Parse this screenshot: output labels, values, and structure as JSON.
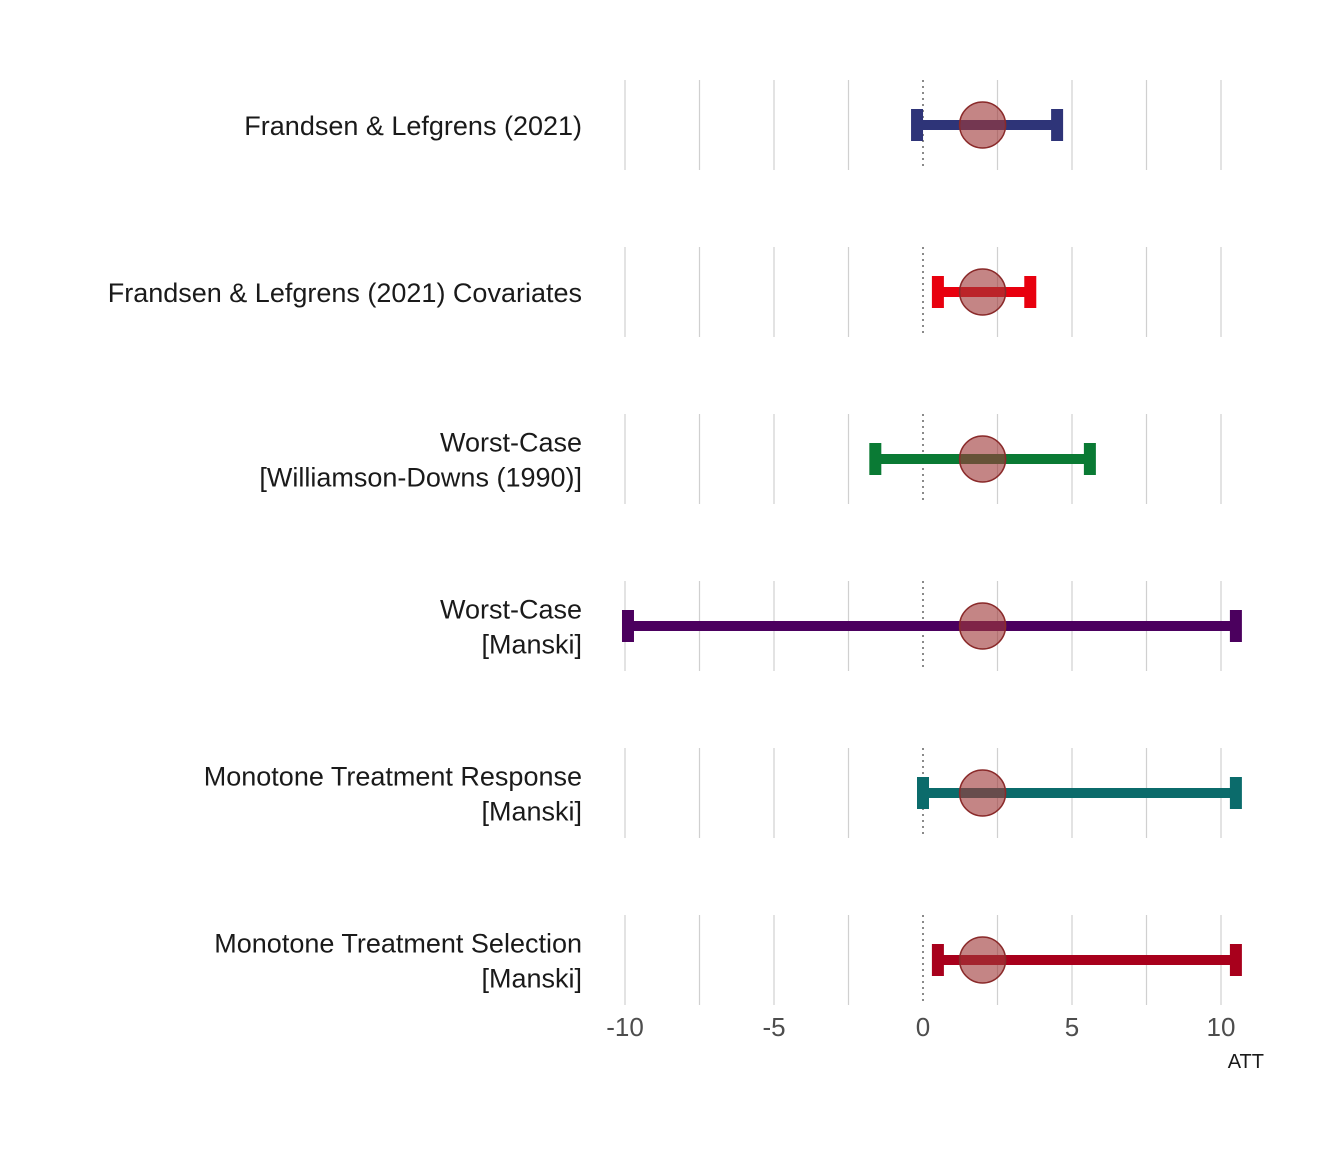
{
  "chart_data": {
    "type": "interval",
    "xlabel": "ATT",
    "xlim": [
      -10,
      10.6
    ],
    "x_ticks": [
      -10,
      -5,
      0,
      5,
      10
    ],
    "x_tick_labels": [
      "-10",
      "-5",
      "0",
      "5",
      "10"
    ],
    "grid_minor_x": [
      -7.5,
      -2.5,
      2.5,
      7.5
    ],
    "reference_line": 0,
    "point_estimate": 2,
    "point_color": "#a03a3a",
    "rows": [
      {
        "label": [
          "Frandsen & Lefgrens (2021)"
        ],
        "lower": -0.2,
        "upper": 4.5,
        "color": "#2e3478"
      },
      {
        "label": [
          "Frandsen & Lefgrens (2021) Covariates"
        ],
        "lower": 0.5,
        "upper": 3.6,
        "color": "#e8000e"
      },
      {
        "label": [
          "Worst-Case",
          "[Williamson-Downs (1990)]"
        ],
        "lower": -1.6,
        "upper": 5.6,
        "color": "#0a7a34"
      },
      {
        "label": [
          "Worst-Case",
          "[Manski]"
        ],
        "lower": -9.9,
        "upper": 10.5,
        "color": "#4b005e"
      },
      {
        "label": [
          "Monotone Treatment Response",
          "[Manski]"
        ],
        "lower": 0.0,
        "upper": 10.5,
        "color": "#0b6b6b"
      },
      {
        "label": [
          "Monotone Treatment Selection",
          "[Manski]"
        ],
        "lower": 0.5,
        "upper": 10.5,
        "color": "#a8001c"
      }
    ]
  }
}
